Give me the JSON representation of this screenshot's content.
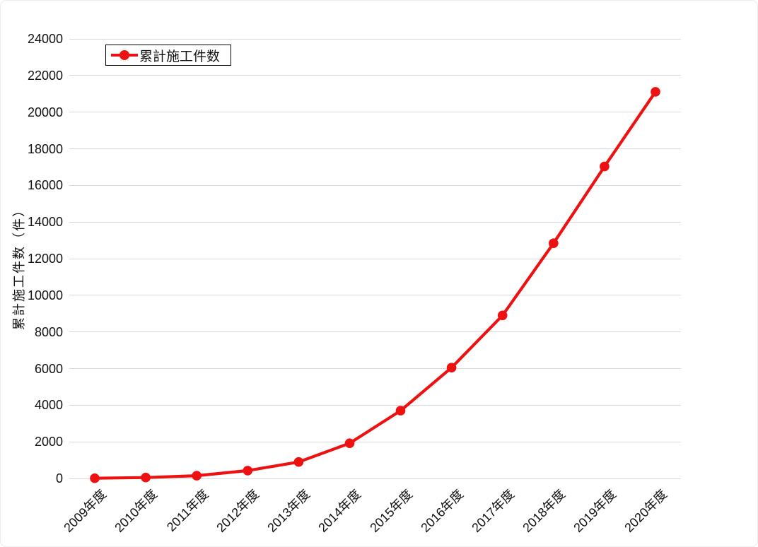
{
  "chart_data": {
    "type": "line",
    "title": "",
    "xlabel": "",
    "ylabel": "累計施工件数（件）",
    "categories": [
      "2009年度",
      "2010年度",
      "2011年度",
      "2012年度",
      "2013年度",
      "2014年度",
      "2015年度",
      "2016年度",
      "2017年度",
      "2018年度",
      "2019年度",
      "2020年度"
    ],
    "series": [
      {
        "name": "累計施工件数",
        "values": [
          10,
          50,
          150,
          430,
          900,
          1920,
          3700,
          6050,
          8900,
          12840,
          17030,
          21110
        ]
      }
    ],
    "ylim": [
      0,
      24000
    ],
    "ytick_step": 2000,
    "grid": "horizontal-only",
    "legend_position": "top-left"
  },
  "colors": {
    "series_red": "#ee1111",
    "gridline": "#d9d9d9",
    "text": "#111111",
    "legend_border": "#000000",
    "background": "#ffffff"
  }
}
